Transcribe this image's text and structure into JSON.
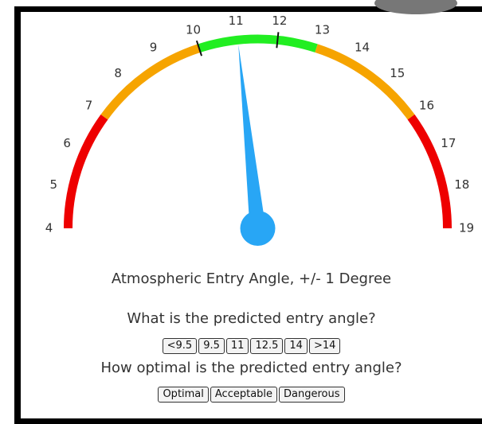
{
  "chart_data": {
    "type": "gauge",
    "title": "Atmospheric Entry Angle, +/- 1 Degree",
    "lim": [
      4,
      19
    ],
    "ticks": [
      4,
      5,
      6,
      7,
      8,
      9,
      10,
      11,
      12,
      13,
      14,
      15,
      16,
      17,
      18,
      19
    ],
    "value": 11,
    "needle_color": "#28a6f5",
    "bands": [
      {
        "from": 4,
        "to": 7,
        "color": "#ee0000"
      },
      {
        "from": 7,
        "to": 10,
        "color": "#f6a400"
      },
      {
        "from": 10,
        "to": 13,
        "color": "#22ee22"
      },
      {
        "from": 13,
        "to": 16,
        "color": "#f6a400"
      },
      {
        "from": 16,
        "to": 19,
        "color": "#ee0000"
      }
    ],
    "markers": [
      10,
      12
    ]
  },
  "questions": [
    {
      "text": "What is the predicted entry angle?",
      "options": [
        "<9.5",
        "9.5",
        "11",
        "12.5",
        "14",
        ">14"
      ]
    },
    {
      "text": "How optimal is the predicted entry angle?",
      "options": [
        "Optimal",
        "Acceptable",
        "Dangerous"
      ]
    }
  ]
}
